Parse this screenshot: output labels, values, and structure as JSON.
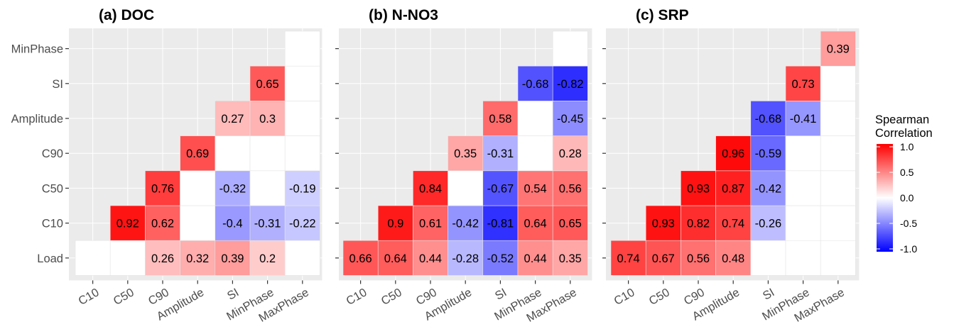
{
  "legend": {
    "title_line1": "Spearman",
    "title_line2": "Correlation",
    "ticks": [
      "1.0",
      "0.5",
      "0.0",
      "-0.5",
      "-1.0"
    ],
    "tick_values": [
      1.0,
      0.5,
      0.0,
      -0.5,
      -1.0
    ],
    "color_low": "#0000ff",
    "color_mid": "#ffffff",
    "color_high": "#ff0000",
    "range": [
      -1,
      1
    ]
  },
  "colors": {
    "panel_bg": "#ebebeb",
    "grid": "#ffffff",
    "tick_text": "#4d4d4d",
    "missing": "#ffffff"
  },
  "chart_data": [
    {
      "type": "heatmap",
      "title": "(a) DOC",
      "x": [
        "C10",
        "C50",
        "C90",
        "Amplitude",
        "SI",
        "MinPhase",
        "MaxPhase"
      ],
      "y": [
        "Load",
        "C10",
        "C50",
        "C90",
        "Amplitude",
        "SI",
        "MinPhase"
      ],
      "cells": [
        {
          "x": "C10",
          "y": "Load",
          "value": null
        },
        {
          "x": "C50",
          "y": "Load",
          "value": null
        },
        {
          "x": "C90",
          "y": "Load",
          "value": 0.26
        },
        {
          "x": "Amplitude",
          "y": "Load",
          "value": 0.32
        },
        {
          "x": "SI",
          "y": "Load",
          "value": 0.39
        },
        {
          "x": "MinPhase",
          "y": "Load",
          "value": 0.2
        },
        {
          "x": "MaxPhase",
          "y": "Load",
          "value": null
        },
        {
          "x": "C50",
          "y": "C10",
          "value": 0.92
        },
        {
          "x": "C90",
          "y": "C10",
          "value": 0.62
        },
        {
          "x": "Amplitude",
          "y": "C10",
          "value": null
        },
        {
          "x": "SI",
          "y": "C10",
          "value": -0.4
        },
        {
          "x": "MinPhase",
          "y": "C10",
          "value": -0.31
        },
        {
          "x": "MaxPhase",
          "y": "C10",
          "value": -0.22
        },
        {
          "x": "C90",
          "y": "C50",
          "value": 0.76
        },
        {
          "x": "Amplitude",
          "y": "C50",
          "value": null
        },
        {
          "x": "SI",
          "y": "C50",
          "value": -0.32
        },
        {
          "x": "MinPhase",
          "y": "C50",
          "value": null
        },
        {
          "x": "MaxPhase",
          "y": "C50",
          "value": -0.19
        },
        {
          "x": "Amplitude",
          "y": "C90",
          "value": 0.69
        },
        {
          "x": "SI",
          "y": "C90",
          "value": null
        },
        {
          "x": "MinPhase",
          "y": "C90",
          "value": null
        },
        {
          "x": "MaxPhase",
          "y": "C90",
          "value": null
        },
        {
          "x": "SI",
          "y": "Amplitude",
          "value": 0.27
        },
        {
          "x": "MinPhase",
          "y": "Amplitude",
          "value": 0.3
        },
        {
          "x": "MaxPhase",
          "y": "Amplitude",
          "value": null
        },
        {
          "x": "MinPhase",
          "y": "SI",
          "value": 0.65
        },
        {
          "x": "MaxPhase",
          "y": "SI",
          "value": null
        },
        {
          "x": "MaxPhase",
          "y": "MinPhase",
          "value": null
        }
      ]
    },
    {
      "type": "heatmap",
      "title": "(b) N-NO3",
      "x": [
        "C10",
        "C50",
        "C90",
        "Amplitude",
        "SI",
        "MinPhase",
        "MaxPhase"
      ],
      "y": [
        "Load",
        "C10",
        "C50",
        "C90",
        "Amplitude",
        "SI",
        "MinPhase"
      ],
      "cells": [
        {
          "x": "C10",
          "y": "Load",
          "value": 0.66
        },
        {
          "x": "C50",
          "y": "Load",
          "value": 0.64
        },
        {
          "x": "C90",
          "y": "Load",
          "value": 0.44
        },
        {
          "x": "Amplitude",
          "y": "Load",
          "value": -0.28
        },
        {
          "x": "SI",
          "y": "Load",
          "value": -0.52
        },
        {
          "x": "MinPhase",
          "y": "Load",
          "value": 0.44
        },
        {
          "x": "MaxPhase",
          "y": "Load",
          "value": 0.35
        },
        {
          "x": "C50",
          "y": "C10",
          "value": 0.9
        },
        {
          "x": "C90",
          "y": "C10",
          "value": 0.61
        },
        {
          "x": "Amplitude",
          "y": "C10",
          "value": -0.42
        },
        {
          "x": "SI",
          "y": "C10",
          "value": -0.81
        },
        {
          "x": "MinPhase",
          "y": "C10",
          "value": 0.64
        },
        {
          "x": "MaxPhase",
          "y": "C10",
          "value": 0.65
        },
        {
          "x": "C90",
          "y": "C50",
          "value": 0.84
        },
        {
          "x": "Amplitude",
          "y": "C50",
          "value": null
        },
        {
          "x": "SI",
          "y": "C50",
          "value": -0.67
        },
        {
          "x": "MinPhase",
          "y": "C50",
          "value": 0.54
        },
        {
          "x": "MaxPhase",
          "y": "C50",
          "value": 0.56
        },
        {
          "x": "Amplitude",
          "y": "C90",
          "value": 0.35
        },
        {
          "x": "SI",
          "y": "C90",
          "value": -0.31
        },
        {
          "x": "MinPhase",
          "y": "C90",
          "value": null
        },
        {
          "x": "MaxPhase",
          "y": "C90",
          "value": 0.28
        },
        {
          "x": "SI",
          "y": "Amplitude",
          "value": 0.58
        },
        {
          "x": "MinPhase",
          "y": "Amplitude",
          "value": null
        },
        {
          "x": "MaxPhase",
          "y": "Amplitude",
          "value": -0.45
        },
        {
          "x": "MinPhase",
          "y": "SI",
          "value": -0.68
        },
        {
          "x": "MaxPhase",
          "y": "SI",
          "value": -0.82
        },
        {
          "x": "MaxPhase",
          "y": "MinPhase",
          "value": null
        }
      ]
    },
    {
      "type": "heatmap",
      "title": "(c) SRP",
      "x": [
        "C10",
        "C50",
        "C90",
        "Amplitude",
        "SI",
        "MinPhase",
        "MaxPhase"
      ],
      "y": [
        "Load",
        "C10",
        "C50",
        "C90",
        "Amplitude",
        "SI",
        "MinPhase"
      ],
      "cells": [
        {
          "x": "C10",
          "y": "Load",
          "value": 0.74
        },
        {
          "x": "C50",
          "y": "Load",
          "value": 0.67
        },
        {
          "x": "C90",
          "y": "Load",
          "value": 0.56
        },
        {
          "x": "Amplitude",
          "y": "Load",
          "value": 0.48
        },
        {
          "x": "SI",
          "y": "Load",
          "value": null
        },
        {
          "x": "MinPhase",
          "y": "Load",
          "value": null
        },
        {
          "x": "MaxPhase",
          "y": "Load",
          "value": null
        },
        {
          "x": "C50",
          "y": "C10",
          "value": 0.93
        },
        {
          "x": "C90",
          "y": "C10",
          "value": 0.82
        },
        {
          "x": "Amplitude",
          "y": "C10",
          "value": 0.74
        },
        {
          "x": "SI",
          "y": "C10",
          "value": -0.26
        },
        {
          "x": "MinPhase",
          "y": "C10",
          "value": null
        },
        {
          "x": "MaxPhase",
          "y": "C10",
          "value": null
        },
        {
          "x": "C90",
          "y": "C50",
          "value": 0.93
        },
        {
          "x": "Amplitude",
          "y": "C50",
          "value": 0.87
        },
        {
          "x": "SI",
          "y": "C50",
          "value": -0.42
        },
        {
          "x": "MinPhase",
          "y": "C50",
          "value": null
        },
        {
          "x": "MaxPhase",
          "y": "C50",
          "value": null
        },
        {
          "x": "Amplitude",
          "y": "C90",
          "value": 0.96
        },
        {
          "x": "SI",
          "y": "C90",
          "value": -0.59
        },
        {
          "x": "MinPhase",
          "y": "C90",
          "value": null
        },
        {
          "x": "MaxPhase",
          "y": "C90",
          "value": null
        },
        {
          "x": "SI",
          "y": "Amplitude",
          "value": -0.68
        },
        {
          "x": "MinPhase",
          "y": "Amplitude",
          "value": -0.41
        },
        {
          "x": "MaxPhase",
          "y": "Amplitude",
          "value": null
        },
        {
          "x": "MinPhase",
          "y": "SI",
          "value": 0.73
        },
        {
          "x": "MaxPhase",
          "y": "SI",
          "value": null
        },
        {
          "x": "MaxPhase",
          "y": "MinPhase",
          "value": 0.39
        }
      ]
    }
  ]
}
